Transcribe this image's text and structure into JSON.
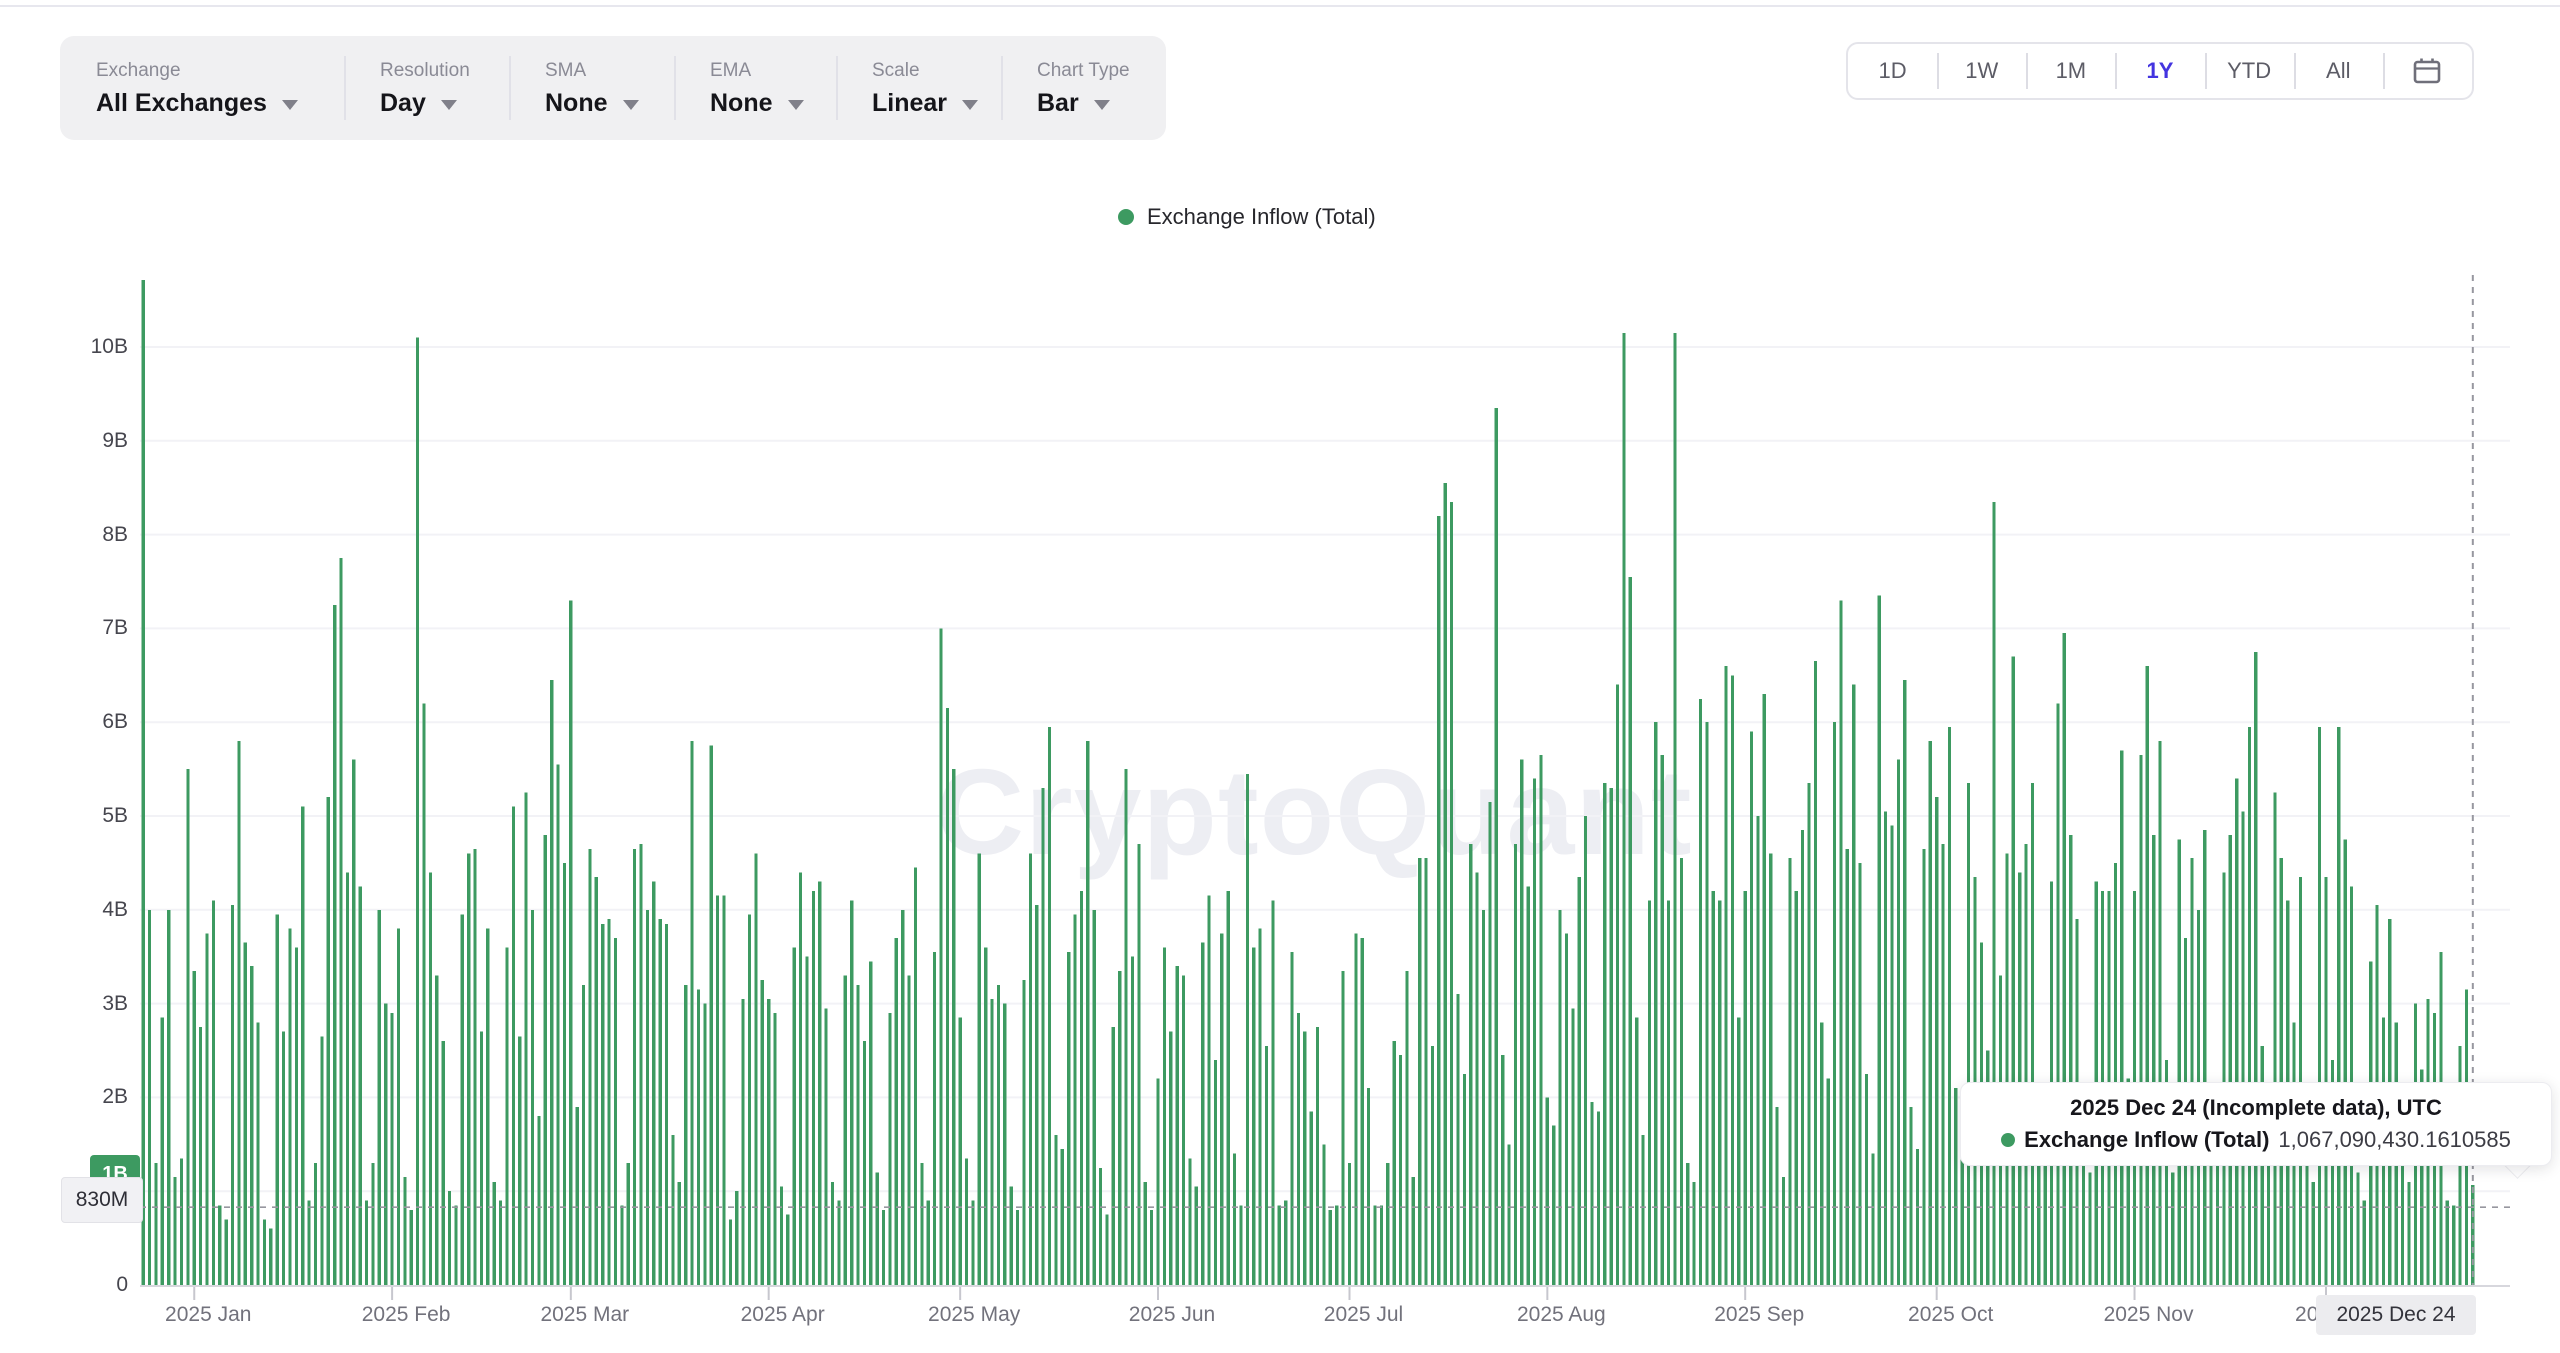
{
  "toolbar": {
    "groups": [
      {
        "label": "Exchange",
        "value": "All Exchanges"
      },
      {
        "label": "Resolution",
        "value": "Day"
      },
      {
        "label": "SMA",
        "value": "None"
      },
      {
        "label": "EMA",
        "value": "None"
      },
      {
        "label": "Scale",
        "value": "Linear"
      },
      {
        "label": "Chart Type",
        "value": "Bar"
      }
    ]
  },
  "time_range": {
    "options": [
      "1D",
      "1W",
      "1M",
      "1Y",
      "YTD",
      "All"
    ],
    "active": "1Y",
    "active_color": "#4334e0",
    "calendar_icon": "calendar-icon"
  },
  "legend": {
    "label": "Exchange Inflow (Total)",
    "color": "#3d9a61"
  },
  "watermark": "CryptoQuant",
  "crosshair": {
    "value_badge": "1B",
    "y_hover_label": "830M",
    "x_hover_label": "2025 Dec 24"
  },
  "tooltip": {
    "title_bold": "2025 Dec 24",
    "title_rest": " (Incomplete data), UTC",
    "series": "Exchange Inflow (Total)",
    "value": "1,067,090,430.1610585"
  },
  "chart_data": {
    "type": "bar",
    "title": "Exchange Inflow (Total)",
    "bar_color": "#3d9a61",
    "frequency": "daily",
    "x_start": "2024-12-24",
    "x_end": "2025-12-24",
    "ylim": [
      0,
      10.75
    ],
    "grid": true,
    "y_ticks": [
      "0",
      "1B",
      "2B",
      "3B",
      "4B",
      "5B",
      "6B",
      "7B",
      "8B",
      "9B",
      "10B"
    ],
    "x_tick_labels": [
      "2025 Jan",
      "2025 Feb",
      "2025 Mar",
      "2025 Apr",
      "2025 May",
      "2025 Jun",
      "2025 Jul",
      "2025 Aug",
      "2025 Sep",
      "2025 Oct",
      "2025 Nov",
      "2025 Dec"
    ],
    "month_start_indices": [
      8,
      39,
      67,
      98,
      128,
      159,
      189,
      220,
      251,
      281,
      312,
      342
    ],
    "values_billions": [
      10.75,
      4.0,
      1.3,
      2.85,
      4.0,
      1.15,
      1.35,
      5.5,
      3.35,
      2.75,
      3.75,
      4.1,
      0.85,
      0.7,
      4.05,
      5.8,
      3.65,
      3.4,
      2.8,
      0.7,
      0.6,
      3.95,
      2.7,
      3.8,
      3.6,
      5.1,
      0.9,
      1.3,
      2.65,
      5.2,
      7.25,
      7.75,
      4.4,
      5.6,
      4.25,
      0.9,
      1.3,
      4.0,
      3.0,
      2.9,
      3.8,
      1.15,
      0.8,
      10.1,
      6.2,
      4.4,
      3.3,
      2.6,
      1.0,
      0.85,
      3.95,
      4.6,
      4.65,
      2.7,
      3.8,
      1.1,
      0.9,
      3.6,
      5.1,
      2.65,
      5.25,
      4.0,
      1.8,
      4.8,
      6.45,
      5.55,
      4.5,
      7.3,
      1.9,
      3.2,
      4.65,
      4.35,
      3.85,
      3.9,
      3.7,
      0.85,
      1.3,
      4.65,
      4.7,
      4.0,
      4.3,
      3.9,
      3.85,
      1.6,
      1.1,
      3.2,
      5.8,
      3.15,
      3.0,
      5.75,
      4.15,
      4.15,
      0.7,
      1.0,
      3.05,
      3.95,
      4.6,
      3.25,
      3.05,
      2.9,
      1.05,
      0.75,
      3.6,
      4.4,
      3.5,
      4.2,
      4.3,
      2.95,
      1.1,
      0.9,
      3.3,
      4.1,
      3.2,
      2.6,
      3.45,
      1.2,
      0.8,
      2.9,
      3.7,
      4.0,
      3.3,
      4.45,
      1.3,
      0.9,
      3.55,
      7.0,
      6.15,
      5.5,
      2.85,
      1.35,
      0.9,
      4.6,
      3.6,
      3.05,
      3.2,
      3.0,
      1.05,
      0.8,
      3.25,
      4.6,
      4.05,
      5.3,
      5.95,
      1.6,
      1.45,
      3.55,
      3.95,
      4.2,
      5.8,
      4.0,
      1.25,
      0.75,
      2.75,
      3.35,
      5.5,
      3.5,
      4.7,
      1.1,
      0.8,
      2.2,
      3.6,
      2.7,
      3.4,
      3.3,
      1.35,
      1.05,
      3.65,
      4.15,
      2.4,
      3.75,
      4.2,
      1.4,
      0.85,
      5.45,
      3.6,
      3.8,
      2.55,
      4.1,
      0.85,
      0.9,
      3.55,
      2.9,
      2.7,
      1.85,
      2.75,
      1.5,
      0.8,
      0.85,
      3.35,
      1.3,
      3.75,
      3.7,
      2.1,
      0.85,
      0.85,
      1.3,
      2.6,
      2.45,
      3.35,
      1.15,
      4.55,
      4.55,
      2.55,
      8.2,
      8.55,
      8.35,
      3.1,
      2.25,
      4.7,
      4.4,
      4.0,
      5.15,
      9.35,
      2.45,
      1.5,
      4.7,
      5.6,
      4.25,
      5.4,
      5.65,
      2.0,
      1.7,
      4.0,
      3.75,
      2.95,
      4.35,
      5.0,
      1.95,
      1.85,
      5.35,
      5.3,
      6.4,
      10.15,
      7.55,
      2.85,
      1.6,
      4.1,
      6.0,
      5.65,
      4.1,
      10.15,
      4.55,
      1.3,
      1.1,
      6.25,
      6.0,
      4.2,
      4.1,
      6.6,
      6.5,
      2.85,
      4.2,
      5.9,
      5.0,
      6.3,
      4.6,
      1.9,
      1.15,
      4.55,
      4.2,
      4.85,
      5.35,
      6.65,
      2.8,
      2.2,
      6.0,
      7.3,
      4.65,
      6.4,
      4.5,
      2.25,
      1.4,
      7.35,
      5.05,
      4.9,
      5.6,
      6.45,
      1.9,
      1.45,
      4.65,
      5.8,
      5.2,
      4.7,
      5.95,
      2.1,
      1.35,
      5.35,
      4.35,
      3.65,
      2.5,
      8.35,
      3.3,
      4.6,
      6.7,
      4.4,
      4.7,
      5.35,
      2.15,
      1.3,
      4.3,
      6.2,
      6.95,
      4.8,
      3.9,
      1.55,
      1.2,
      4.3,
      4.2,
      4.2,
      4.5,
      5.7,
      2.2,
      4.2,
      5.65,
      6.6,
      4.8,
      5.8,
      2.4,
      1.2,
      4.75,
      3.7,
      4.55,
      4.0,
      4.85,
      1.8,
      1.3,
      4.4,
      4.8,
      5.4,
      5.05,
      5.95,
      6.75,
      2.55,
      1.5,
      5.25,
      4.55,
      4.1,
      2.8,
      4.35,
      1.6,
      1.1,
      5.95,
      4.35,
      2.4,
      5.95,
      4.75,
      4.25,
      1.2,
      0.9,
      3.45,
      4.05,
      2.85,
      3.9,
      2.8,
      2.1,
      1.1,
      3.0,
      2.3,
      3.05,
      2.9,
      3.55,
      0.9,
      0.85,
      2.55,
      3.15,
      1.06709043
    ],
    "last_point": {
      "date": "2025 Dec 24",
      "value": 1067090430.1610585,
      "note": "Incomplete data"
    }
  }
}
